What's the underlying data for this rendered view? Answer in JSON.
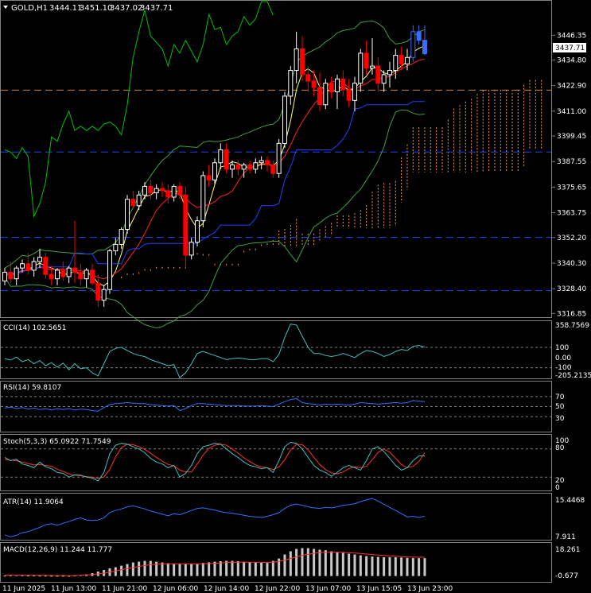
{
  "symbol_header": {
    "symbol": "GOLD,H1",
    "open": "3444.11",
    "high": "3451.10",
    "low": "3437.02",
    "close": "3437.71"
  },
  "price_axis": {
    "ticks": [
      "3446.35",
      "3434.80",
      "3422.90",
      "3411.00",
      "3399.45",
      "3387.55",
      "3375.65",
      "3363.75",
      "3352.20",
      "3340.30",
      "3328.40",
      "3316.85"
    ],
    "tick_values": [
      3446.35,
      3434.8,
      3422.9,
      3411.0,
      3399.45,
      3387.55,
      3375.65,
      3363.75,
      3352.2,
      3340.3,
      3328.4,
      3316.85
    ],
    "current_price_label": "3437.71",
    "current_price": 3437.71,
    "range": [
      3315.5,
      3462.0
    ]
  },
  "time_axis": {
    "labels": [
      "11 Jun 2025",
      "11 Jun 13:00",
      "11 Jun 21:00",
      "12 Jun 06:00",
      "12 Jun 14:00",
      "12 Jun 22:00",
      "13 Jun 07:00",
      "13 Jun 15:05",
      "13 Jun 23:00"
    ]
  },
  "indicators": {
    "cci": {
      "label": "CCI(14) 102.5651",
      "ticks": [
        "358.7569",
        "100",
        "0.00",
        "-100",
        "-205.2135"
      ]
    },
    "rsi": {
      "label": "RSI(14) 59.8107",
      "ticks": [
        "70",
        "50",
        "30"
      ]
    },
    "stoch": {
      "label": "Stoch(5,3,3) 65.0922 71.7549",
      "ticks": [
        "100",
        "80",
        "20",
        "0"
      ]
    },
    "atr": {
      "label": "ATR(14) 11.9064",
      "ticks": [
        "15.4468",
        "7.911"
      ]
    },
    "macd": {
      "label": "MACD(12,26,9) 11.244 11.777",
      "ticks": [
        "18.261",
        "-0.677"
      ]
    }
  },
  "colors": {
    "background": "#000000",
    "bull_candle": "#ffffff",
    "bear_candle": "#ff0000",
    "recent_candle": "#3b6cff",
    "lime_line": "#00c000",
    "yellow_line": "#ffff66",
    "red_line": "#ff2020",
    "blue_line": "#2040ff",
    "bollinger": "#40a040",
    "cloud": "#ff9a40",
    "cci_line": "#40c0c0",
    "rsi_line": "#3070ff",
    "stoch_main": "#40c0c0",
    "stoch_signal": "#ff3030",
    "atr_line": "#3070ff",
    "macd_bar": "#c8c8c8",
    "macd_signal": "#ff3030"
  },
  "chart_data": {
    "type": "candlestick",
    "timeframe": "H1",
    "candles": [
      [
        3332,
        3338,
        3330,
        3336
      ],
      [
        3336,
        3341,
        3331,
        3333
      ],
      [
        3333,
        3339,
        3330,
        3338
      ],
      [
        3338,
        3342,
        3336,
        3340
      ],
      [
        3340,
        3345,
        3335,
        3337
      ],
      [
        3337,
        3343,
        3334,
        3341
      ],
      [
        3341,
        3347,
        3338,
        3343
      ],
      [
        3343,
        3345,
        3333,
        3335
      ],
      [
        3335,
        3339,
        3330,
        3333
      ],
      [
        3333,
        3338,
        3330,
        3337
      ],
      [
        3337,
        3341,
        3332,
        3334
      ],
      [
        3334,
        3339,
        3331,
        3338
      ],
      [
        3338,
        3360,
        3331,
        3336
      ],
      [
        3336,
        3340,
        3330,
        3333
      ],
      [
        3333,
        3338,
        3329,
        3337
      ],
      [
        3337,
        3340,
        3330,
        3331
      ],
      [
        3331,
        3335,
        3320,
        3323
      ],
      [
        3323,
        3330,
        3320,
        3328
      ],
      [
        3328,
        3347,
        3326,
        3346
      ],
      [
        3346,
        3352,
        3344,
        3349
      ],
      [
        3349,
        3357,
        3347,
        3356
      ],
      [
        3356,
        3372,
        3354,
        3370
      ],
      [
        3370,
        3374,
        3366,
        3367
      ],
      [
        3367,
        3374,
        3365,
        3372
      ],
      [
        3372,
        3378,
        3370,
        3376
      ],
      [
        3376,
        3379,
        3370,
        3373
      ],
      [
        3373,
        3377,
        3370,
        3375
      ],
      [
        3375,
        3378,
        3371,
        3374
      ],
      [
        3374,
        3377,
        3368,
        3371
      ],
      [
        3371,
        3377,
        3369,
        3376
      ],
      [
        3376,
        3378,
        3370,
        3372
      ],
      [
        3372,
        3376,
        3338,
        3344
      ],
      [
        3344,
        3352,
        3342,
        3350
      ],
      [
        3350,
        3362,
        3348,
        3360
      ],
      [
        3360,
        3383,
        3357,
        3381
      ],
      [
        3381,
        3386,
        3376,
        3379
      ],
      [
        3379,
        3389,
        3377,
        3387
      ],
      [
        3387,
        3396,
        3384,
        3393
      ],
      [
        3393,
        3396,
        3382,
        3384
      ],
      [
        3384,
        3388,
        3380,
        3386
      ],
      [
        3386,
        3388,
        3381,
        3384
      ],
      [
        3384,
        3387,
        3380,
        3386
      ],
      [
        3386,
        3388,
        3382,
        3384
      ],
      [
        3384,
        3389,
        3382,
        3387
      ],
      [
        3387,
        3390,
        3384,
        3388
      ],
      [
        3388,
        3390,
        3383,
        3386
      ],
      [
        3386,
        3388,
        3380,
        3382
      ],
      [
        3382,
        3398,
        3380,
        3396
      ],
      [
        3396,
        3420,
        3394,
        3418
      ],
      [
        3418,
        3432,
        3414,
        3430
      ],
      [
        3430,
        3448,
        3424,
        3440
      ],
      [
        3440,
        3446,
        3425,
        3428
      ],
      [
        3428,
        3432,
        3420,
        3425
      ],
      [
        3425,
        3430,
        3418,
        3422
      ],
      [
        3422,
        3429,
        3411,
        3414
      ],
      [
        3414,
        3426,
        3412,
        3424
      ],
      [
        3424,
        3427,
        3417,
        3420
      ],
      [
        3420,
        3428,
        3412,
        3426
      ],
      [
        3426,
        3430,
        3418,
        3421
      ],
      [
        3421,
        3426,
        3413,
        3416
      ],
      [
        3416,
        3427,
        3411,
        3424
      ],
      [
        3424,
        3440,
        3420,
        3438
      ],
      [
        3438,
        3444,
        3428,
        3431
      ],
      [
        3431,
        3445,
        3428,
        3432
      ],
      [
        3432,
        3436,
        3420,
        3424
      ],
      [
        3424,
        3430,
        3420,
        3428
      ],
      [
        3428,
        3434,
        3422,
        3430
      ],
      [
        3430,
        3440,
        3426,
        3437
      ],
      [
        3437,
        3441,
        3430,
        3433
      ],
      [
        3433,
        3440,
        3430,
        3436
      ],
      [
        3436,
        3451,
        3434,
        3448
      ],
      [
        3448,
        3451,
        3442,
        3444
      ],
      [
        3444,
        3451,
        3437,
        3437.71
      ]
    ],
    "horizontal_lines": [
      {
        "price": 3420.8,
        "color": "#cc8844",
        "style": "dashed"
      },
      {
        "price": 3392.0,
        "color": "#2040ff",
        "style": "dashed"
      },
      {
        "price": 3352.3,
        "color": "#2040ff",
        "style": "dashed"
      },
      {
        "price": 3327.5,
        "color": "#2040ff",
        "style": "dashed"
      }
    ],
    "cci": [
      -10,
      -25,
      5,
      -40,
      -20,
      -60,
      -30,
      -80,
      -50,
      -95,
      -55,
      -120,
      -60,
      -110,
      -100,
      -150,
      -180,
      -60,
      60,
      90,
      100,
      70,
      40,
      20,
      10,
      -20,
      -40,
      -60,
      -80,
      -70,
      -200,
      -150,
      -60,
      40,
      60,
      40,
      20,
      0,
      -20,
      -10,
      -5,
      -10,
      -20,
      -20,
      -10,
      -10,
      -40,
      30,
      200,
      330,
      320,
      210,
      100,
      40,
      40,
      20,
      10,
      20,
      40,
      20,
      0,
      40,
      70,
      60,
      40,
      10,
      30,
      60,
      80,
      70,
      110,
      120,
      102
    ],
    "rsi": [
      47,
      49,
      46,
      48,
      45,
      47,
      44,
      46,
      43,
      46,
      44,
      46,
      43,
      45,
      44,
      42,
      41,
      48,
      54,
      56,
      57,
      58,
      57,
      56,
      56,
      54,
      53,
      52,
      51,
      52,
      42,
      46,
      52,
      56,
      56,
      55,
      54,
      53,
      52,
      52,
      52,
      51,
      51,
      51,
      52,
      51,
      50,
      55,
      60,
      64,
      66,
      58,
      56,
      55,
      53,
      55,
      54,
      55,
      54,
      53,
      55,
      58,
      57,
      56,
      55,
      56,
      57,
      58,
      57,
      58,
      62,
      61,
      60
    ],
    "stoch_main": [
      62,
      55,
      58,
      48,
      45,
      40,
      52,
      42,
      38,
      30,
      28,
      20,
      25,
      24,
      20,
      18,
      12,
      30,
      70,
      88,
      92,
      90,
      85,
      80,
      72,
      60,
      52,
      48,
      40,
      45,
      20,
      28,
      45,
      70,
      85,
      88,
      92,
      90,
      80,
      70,
      62,
      52,
      45,
      42,
      38,
      40,
      30,
      55,
      85,
      94,
      92,
      80,
      62,
      45,
      35,
      30,
      22,
      30,
      40,
      45,
      40,
      35,
      55,
      80,
      85,
      75,
      60,
      45,
      35,
      40,
      55,
      65,
      65
    ],
    "stoch_signal": [
      58,
      56,
      55,
      52,
      49,
      46,
      47,
      45,
      43,
      37,
      32,
      27,
      24,
      23,
      21,
      20,
      17,
      20,
      37,
      63,
      83,
      90,
      89,
      85,
      79,
      71,
      62,
      54,
      47,
      44,
      35,
      31,
      31,
      48,
      67,
      81,
      88,
      90,
      88,
      80,
      71,
      61,
      53,
      46,
      42,
      40,
      36,
      42,
      57,
      78,
      90,
      89,
      78,
      62,
      47,
      36,
      29,
      27,
      31,
      38,
      42,
      40,
      43,
      57,
      73,
      80,
      73,
      60,
      47,
      40,
      43,
      53,
      72
    ],
    "atr": [
      8.4,
      8.0,
      8.3,
      8.8,
      9.0,
      9.4,
      9.8,
      10.3,
      10.5,
      10.2,
      10.6,
      10.9,
      11.3,
      11.6,
      11.2,
      11.1,
      11.2,
      11.6,
      12.6,
      13.0,
      13.3,
      13.7,
      13.9,
      13.6,
      13.3,
      12.9,
      12.6,
      12.3,
      12.0,
      12.4,
      12.2,
      12.6,
      13.0,
      13.4,
      13.5,
      13.3,
      13.1,
      12.8,
      12.6,
      12.5,
      12.3,
      12.1,
      11.9,
      11.8,
      11.7,
      11.9,
      12.2,
      12.6,
      13.4,
      14.0,
      14.2,
      14.0,
      13.7,
      13.5,
      13.4,
      13.6,
      13.5,
      13.7,
      14.0,
      14.1,
      14.3,
      14.7,
      15.0,
      15.3,
      14.8,
      14.2,
      13.6,
      13.0,
      12.4,
      11.8,
      11.9,
      11.7,
      11.9
    ],
    "macd": [
      0.2,
      0.4,
      0.5,
      0.4,
      0.3,
      0.3,
      0.2,
      0.2,
      0.1,
      0.1,
      0.1,
      0.1,
      0.3,
      0.6,
      1.0,
      1.8,
      2.8,
      3.8,
      4.8,
      5.5,
      6.5,
      7.5,
      8.5,
      9.0,
      9.5,
      9.5,
      9.0,
      8.5,
      8.0,
      7.5,
      7.5,
      7.5,
      7.5,
      7.8,
      8.2,
      8.6,
      9.0,
      9.3,
      9.5,
      9.5,
      9.3,
      9.0,
      8.8,
      8.5,
      8.3,
      8.2,
      9.5,
      11.0,
      13.5,
      15.5,
      17.0,
      17.5,
      17.5,
      17.0,
      16.5,
      16.2,
      15.5,
      15.0,
      14.5,
      14.0,
      13.5,
      13.0,
      12.5,
      12.2,
      12.0,
      11.8,
      11.8,
      11.8,
      11.6,
      11.4,
      11.3,
      11.2,
      11.2
    ],
    "macd_signal": [
      0.5,
      0.5,
      0.5,
      0.5,
      0.5,
      0.4,
      0.4,
      0.4,
      0.3,
      0.3,
      0.3,
      0.2,
      0.3,
      0.4,
      0.6,
      0.9,
      1.3,
      1.8,
      2.5,
      3.2,
      3.9,
      4.6,
      5.3,
      6.0,
      6.6,
      7.1,
      7.4,
      7.6,
      7.7,
      7.7,
      7.7,
      7.6,
      7.6,
      7.6,
      7.7,
      7.8,
      8.0,
      8.2,
      8.4,
      8.6,
      8.7,
      8.7,
      8.7,
      8.6,
      8.6,
      8.5,
      8.7,
      9.2,
      10.0,
      11.0,
      12.0,
      13.0,
      13.7,
      14.2,
      14.6,
      14.8,
      14.9,
      14.9,
      14.8,
      14.6,
      14.4,
      14.1,
      13.8,
      13.5,
      13.2,
      12.9,
      12.6,
      12.4,
      12.2,
      12.0,
      11.9,
      11.8,
      11.777
    ]
  }
}
